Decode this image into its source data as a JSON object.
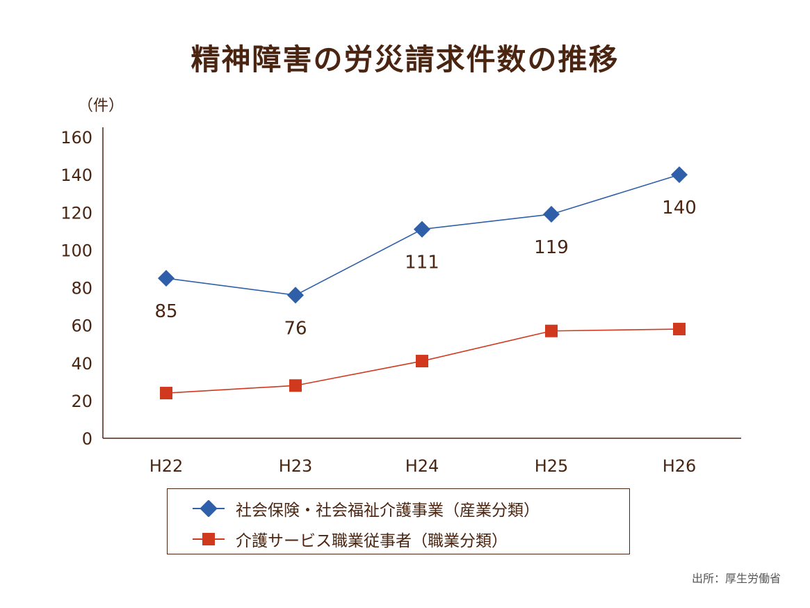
{
  "chart_data": {
    "type": "line",
    "title": "精神障害の労災請求件数の推移",
    "ylabel": "（件）",
    "xlabel": "",
    "categories": [
      "H22",
      "H23",
      "H24",
      "H25",
      "H26"
    ],
    "yticks": [
      "0",
      "20",
      "40",
      "60",
      "80",
      "100",
      "120",
      "140",
      "160"
    ],
    "ylim": [
      0,
      160
    ],
    "grid": false,
    "legend_position": "bottom",
    "series": [
      {
        "name": "社会保険・社会福祉介護事業（産業分類）",
        "values": [
          85,
          76,
          111,
          119,
          140
        ],
        "labels": [
          "85",
          "76",
          "111",
          "119",
          "140"
        ],
        "color": "#2e5fa8",
        "marker": "diamond"
      },
      {
        "name": "介護サービス職業従事者（職業分類）",
        "values": [
          24,
          28,
          41,
          57,
          58
        ],
        "color": "#d0391e",
        "marker": "square"
      }
    ]
  },
  "source": "出所：厚生労働省"
}
